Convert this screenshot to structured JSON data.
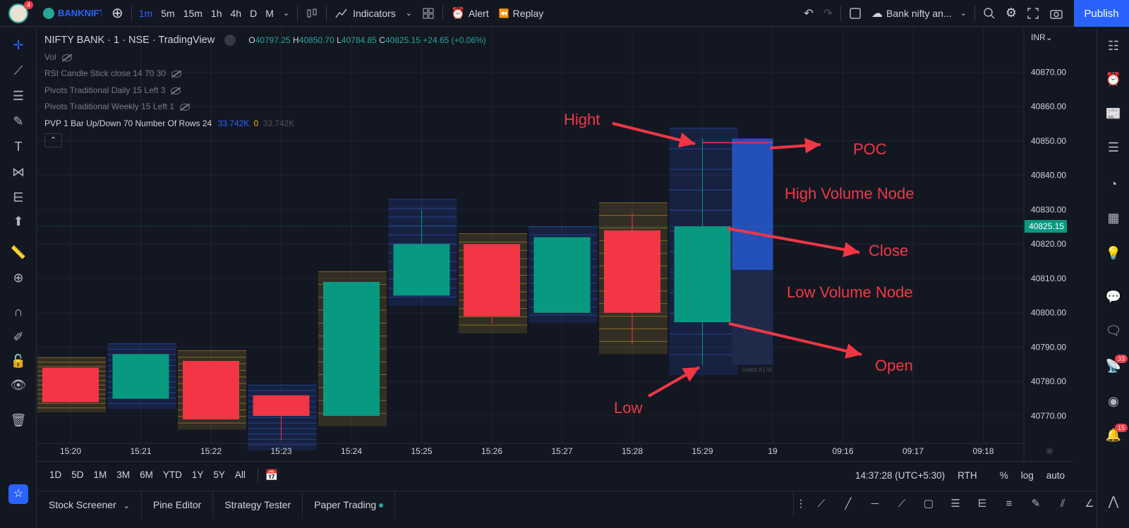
{
  "topbar": {
    "avatar_badge": "4",
    "symbol": "BANKNIFTY",
    "timeframes": [
      "1m",
      "5m",
      "15m",
      "1h",
      "4h",
      "D",
      "M"
    ],
    "indicators_label": "Indicators",
    "alert_label": "Alert",
    "replay_label": "Replay",
    "layout_name": "Bank nifty an...",
    "publish_label": "Publish"
  },
  "legend": {
    "title": "NIFTY BANK · 1 · NSE · TradingView",
    "o_label": "O",
    "o_value": "40797.25",
    "h_label": "H",
    "h_value": "40850.70",
    "l_label": "L",
    "l_value": "40784.85",
    "c_label": "C",
    "c_value": "40825.15",
    "change": "+24.65 (+0.06%)",
    "vol": "Vol",
    "rsi": "RSI Candle Stick close 14 70 30",
    "pivots_daily": "Pivots Traditional Daily 15 Left 3",
    "pivots_weekly": "Pivots Traditional Weekly 15 Left 1",
    "pvp": "PVP 1 Bar Up/Down 70 Number Of Rows 24",
    "pvp_v1": "33.742K",
    "pvp_v2": "0",
    "pvp_v3": "33.742K"
  },
  "chart_data": {
    "type": "candlestick",
    "currency": "INR",
    "last_price": "40825.15",
    "y_ticks": [
      "40870.00",
      "40860.00",
      "40850.00",
      "40840.00",
      "40830.00",
      "40820.00",
      "40810.00",
      "40800.00",
      "40790.00",
      "40780.00",
      "40770.00"
    ],
    "ylim": [
      40762,
      40883
    ],
    "x_ticks": [
      "15:20",
      "15:21",
      "15:22",
      "15:23",
      "15:24",
      "15:25",
      "15:26",
      "15:27",
      "15:28",
      "15:29",
      "19",
      "09:16",
      "09:17",
      "09:18"
    ],
    "candles": [
      {
        "t": "15:20",
        "o": 40784,
        "h": 40784,
        "l": 40774,
        "c": 40774
      },
      {
        "t": "15:21",
        "o": 40775,
        "h": 40788,
        "l": 40775,
        "c": 40788
      },
      {
        "t": "15:22",
        "o": 40786,
        "h": 40786,
        "l": 40769,
        "c": 40769
      },
      {
        "t": "15:23",
        "o": 40776,
        "h": 40776,
        "l": 40763,
        "c": 40770
      },
      {
        "t": "15:24",
        "o": 40770,
        "h": 40809,
        "l": 40770,
        "c": 40809
      },
      {
        "t": "15:25",
        "o": 40805,
        "h": 40830,
        "l": 40805,
        "c": 40820
      },
      {
        "t": "15:26",
        "o": 40820,
        "h": 40820,
        "l": 40797,
        "c": 40799
      },
      {
        "t": "15:27",
        "o": 40800,
        "h": 40822,
        "l": 40800,
        "c": 40822
      },
      {
        "t": "15:28",
        "o": 40824,
        "h": 40829,
        "l": 40791,
        "c": 40800
      },
      {
        "t": "15:29",
        "o": 40797.25,
        "h": 40850.7,
        "l": 40784.85,
        "c": 40825.15
      }
    ],
    "profile_last_labels": [
      "0x809.817K"
    ]
  },
  "annotations": {
    "high": "Hight",
    "poc": "POC",
    "hvn": "High Volume Node",
    "close": "Close",
    "lvn": "Low Volume Node",
    "open": "Open",
    "low": "Low"
  },
  "bottombar": {
    "ranges": [
      "1D",
      "5D",
      "1M",
      "3M",
      "6M",
      "YTD",
      "1Y",
      "5Y",
      "All"
    ],
    "clock": "14:37:28 (UTC+5:30)",
    "rth": "RTH",
    "pct": "%",
    "log": "log",
    "auto": "auto"
  },
  "footer": {
    "tabs": [
      "Stock Screener",
      "Pine Editor",
      "Strategy Tester",
      "Paper Trading"
    ]
  },
  "rightbar": {
    "badge_alerts": "33",
    "badge_notif": "15"
  },
  "colors": {
    "bg": "#131722",
    "up": "#089981",
    "down": "#f23645",
    "accent": "#2962ff",
    "annotation": "#f23645"
  }
}
